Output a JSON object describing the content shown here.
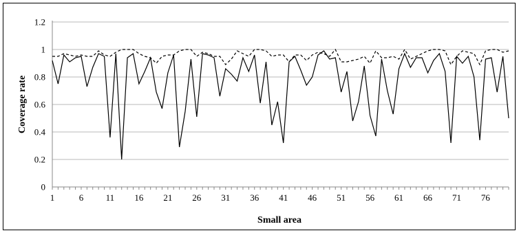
{
  "chart_data": {
    "type": "line",
    "xlabel": "Small area",
    "ylabel": "Coverage rate",
    "ylim": [
      0,
      1.2
    ],
    "yticks": [
      "0",
      "0.2",
      "0.4",
      "0.6",
      "0.8",
      "1",
      "1.2"
    ],
    "xticks": [
      "1",
      "6",
      "11",
      "16",
      "21",
      "26",
      "31",
      "36",
      "41",
      "46",
      "51",
      "56",
      "61",
      "66",
      "71",
      "76"
    ],
    "grid": "horizontal",
    "legend": "none",
    "x": [
      1,
      2,
      3,
      4,
      5,
      6,
      7,
      8,
      9,
      10,
      11,
      12,
      13,
      14,
      15,
      16,
      17,
      18,
      19,
      20,
      21,
      22,
      23,
      24,
      25,
      26,
      27,
      28,
      29,
      30,
      31,
      32,
      33,
      34,
      35,
      36,
      37,
      38,
      39,
      40,
      41,
      42,
      43,
      44,
      45,
      46,
      47,
      48,
      49,
      50,
      51,
      52,
      53,
      54,
      55,
      56,
      57,
      58,
      59,
      60,
      61,
      62,
      63,
      64,
      65,
      66,
      67,
      68,
      69,
      70,
      71,
      72,
      73,
      74,
      75,
      76,
      77,
      78,
      79,
      80
    ],
    "series": [
      {
        "style": "solid",
        "color": "#000000",
        "values": [
          0.92,
          0.75,
          0.96,
          0.91,
          0.94,
          0.95,
          0.73,
          0.87,
          0.97,
          0.95,
          0.36,
          0.97,
          0.2,
          0.94,
          0.97,
          0.75,
          0.84,
          0.94,
          0.69,
          0.57,
          0.83,
          0.96,
          0.29,
          0.55,
          0.93,
          0.51,
          0.97,
          0.96,
          0.94,
          0.66,
          0.86,
          0.82,
          0.77,
          0.94,
          0.84,
          0.96,
          0.61,
          0.91,
          0.45,
          0.62,
          0.32,
          0.91,
          0.95,
          0.85,
          0.74,
          0.8,
          0.96,
          0.99,
          0.93,
          0.94,
          0.69,
          0.84,
          0.48,
          0.62,
          0.88,
          0.52,
          0.37,
          0.93,
          0.7,
          0.53,
          0.86,
          0.97,
          0.87,
          0.94,
          0.94,
          0.83,
          0.92,
          0.97,
          0.84,
          0.32,
          0.95,
          0.9,
          0.95,
          0.8,
          0.34,
          0.93,
          0.94,
          0.69,
          0.95,
          0.5
        ]
      },
      {
        "style": "dashed",
        "color": "#000000",
        "values": [
          0.95,
          0.95,
          0.97,
          0.96,
          0.95,
          0.96,
          0.95,
          0.95,
          0.99,
          0.96,
          0.95,
          0.98,
          1.0,
          1.0,
          1.0,
          0.97,
          0.95,
          0.94,
          0.9,
          0.95,
          0.96,
          0.96,
          0.99,
          1.0,
          1.0,
          0.95,
          0.98,
          0.97,
          0.95,
          0.95,
          0.89,
          0.93,
          0.99,
          0.97,
          0.95,
          1.0,
          1.0,
          0.99,
          0.95,
          0.96,
          0.96,
          0.91,
          0.96,
          0.96,
          0.92,
          0.96,
          0.98,
          0.97,
          0.95,
          1.0,
          0.91,
          0.91,
          0.92,
          0.93,
          0.95,
          0.9,
          0.99,
          0.94,
          0.94,
          0.95,
          0.93,
          1.0,
          0.93,
          0.95,
          0.97,
          0.99,
          1.0,
          1.0,
          0.99,
          0.89,
          0.95,
          0.99,
          0.98,
          0.97,
          0.89,
          0.99,
          1.0,
          1.0,
          0.98,
          0.99
        ]
      }
    ]
  }
}
